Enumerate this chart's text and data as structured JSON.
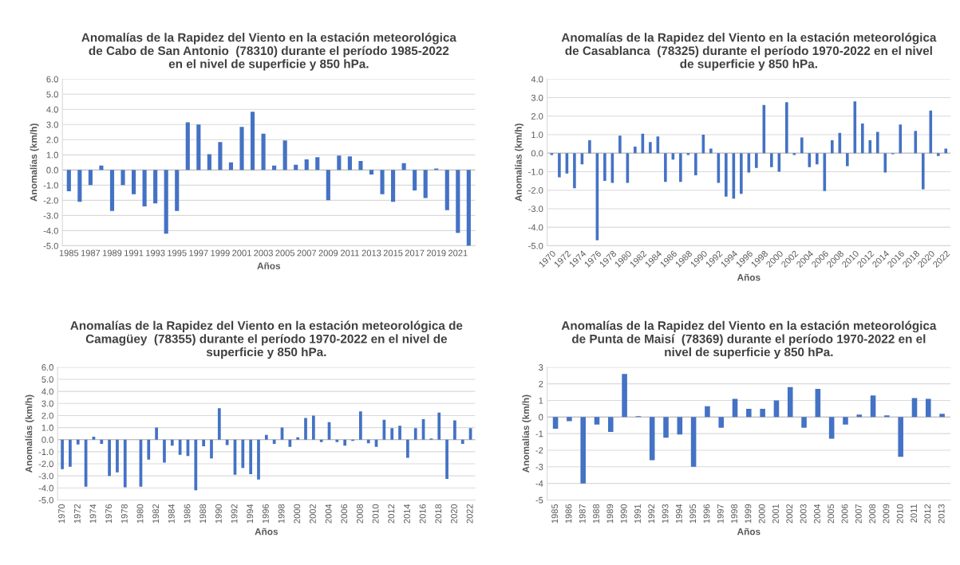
{
  "chart_data": [
    {
      "type": "bar",
      "title": "Anomalías de la Rapidez del Viento en la estación meteorológica\nde Cabo de San Antonio  (78310) durante el período 1985-2022\nen el nivel de superficie y 850 hPa.",
      "xlabel": "Años",
      "ylabel": "Anomalías (km/h)",
      "color": "#4472c4",
      "grid": "y",
      "categories": [
        "1985",
        null,
        "1987",
        null,
        "1989",
        null,
        "1991",
        null,
        "1993",
        null,
        "1995",
        null,
        "1997",
        null,
        "1999",
        null,
        "2001",
        null,
        "2003",
        null,
        "2005",
        null,
        "2007",
        null,
        "2009",
        null,
        "2011",
        null,
        "2013",
        null,
        "2015",
        null,
        "2017",
        null,
        "2019",
        null,
        "2021",
        null
      ],
      "values": [
        -1.4,
        -2.1,
        -1.0,
        0.3,
        -2.7,
        -1.0,
        -1.6,
        -2.4,
        -2.2,
        -4.2,
        -2.7,
        3.15,
        3.0,
        1.05,
        1.85,
        0.5,
        2.85,
        3.85,
        2.4,
        0.3,
        1.95,
        0.35,
        0.7,
        0.85,
        -2.0,
        0.95,
        0.9,
        0.6,
        -0.3,
        -1.6,
        -2.1,
        0.45,
        -1.35,
        -1.85,
        0.1,
        -2.65,
        -4.15,
        -5.0
      ],
      "ylim": [
        -5,
        6
      ],
      "yticks": [
        {
          "value": -5,
          "label": "-5.0"
        },
        {
          "value": -4,
          "label": "-4.0"
        },
        {
          "value": -3,
          "label": "-3.0"
        },
        {
          "value": -2,
          "label": "-2.0"
        },
        {
          "value": -1,
          "label": "-1.0"
        },
        {
          "value": 0,
          "label": "0.0"
        },
        {
          "value": 1,
          "label": "1.0"
        },
        {
          "value": 2,
          "label": "2.0"
        },
        {
          "value": 3,
          "label": "3.0"
        },
        {
          "value": 4,
          "label": "4.0"
        },
        {
          "value": 5,
          "label": "5.0"
        },
        {
          "value": 6,
          "label": "6.0"
        }
      ]
    },
    {
      "type": "bar",
      "title": "Anomalías de la Rapidez del Viento en la estación meteorológica\nde Casablanca  (78325) durante el período 1970-2022 en el nivel\nde superficie y 850 hPa.",
      "xlabel": "Años",
      "ylabel": "Anomalías (km/h)",
      "color": "#4472c4",
      "grid": "y",
      "categories": [
        "1970",
        null,
        "1972",
        null,
        "1974",
        null,
        "1976",
        null,
        "1978",
        null,
        "1980",
        null,
        "1982",
        null,
        "1984",
        null,
        "1986",
        null,
        "1988",
        null,
        "1990",
        null,
        "1992",
        null,
        "1994",
        null,
        "1996",
        null,
        "1998",
        null,
        "2000",
        null,
        "2002",
        null,
        "2004",
        null,
        "2006",
        null,
        "2008",
        null,
        "2010",
        null,
        "2012",
        null,
        "2014",
        null,
        "2016",
        null,
        "2018",
        null,
        "2020",
        null,
        "2022"
      ],
      "values": [
        -0.1,
        -1.3,
        -1.1,
        -1.9,
        -0.6,
        0.7,
        -4.7,
        -1.5,
        -1.6,
        0.95,
        -1.6,
        0.35,
        1.05,
        0.6,
        0.9,
        -1.55,
        -0.35,
        -1.55,
        -0.1,
        -1.2,
        1.0,
        0.25,
        -1.6,
        -2.35,
        -2.45,
        -2.2,
        -1.05,
        -0.8,
        2.6,
        -0.75,
        -1.0,
        2.75,
        -0.1,
        0.85,
        -0.75,
        -0.6,
        -2.05,
        0.7,
        1.1,
        -0.7,
        2.8,
        1.6,
        0.7,
        1.15,
        -1.05,
        -0.05,
        1.55,
        0.0,
        1.2,
        -1.95,
        2.3,
        -0.15,
        0.25
      ],
      "ylim": [
        -5,
        4
      ],
      "yticks": [
        {
          "value": -5,
          "label": "-5.0"
        },
        {
          "value": -4,
          "label": "-4.0"
        },
        {
          "value": -3,
          "label": "-3.0"
        },
        {
          "value": -2,
          "label": "-2.0"
        },
        {
          "value": -1,
          "label": "-1.0"
        },
        {
          "value": 0,
          "label": "0.0"
        },
        {
          "value": 1,
          "label": "1.0"
        },
        {
          "value": 2,
          "label": "2.0"
        },
        {
          "value": 3,
          "label": "3.0"
        },
        {
          "value": 4,
          "label": "4.0"
        }
      ]
    },
    {
      "type": "bar",
      "title": "Anomalías de la Rapidez del Viento en la estación meteorológica de\nCamagüey  (78355) durante el período 1970-2022 en el nivel de\nsuperficie y 850 hPa.",
      "xlabel": "Años",
      "ylabel": "Anomalías (km/h)",
      "color": "#4472c4",
      "grid": "y",
      "categories": [
        "1970",
        null,
        "1972",
        null,
        "1974",
        null,
        "1976",
        null,
        "1978",
        null,
        "1980",
        null,
        "1982",
        null,
        "1984",
        null,
        "1986",
        null,
        "1988",
        null,
        "1990",
        null,
        "1992",
        null,
        "1994",
        null,
        "1996",
        null,
        "1998",
        null,
        "2000",
        null,
        "2002",
        null,
        "2004",
        null,
        "2006",
        null,
        "2008",
        null,
        "2010",
        null,
        "2012",
        null,
        "2014",
        null,
        "2016",
        null,
        "2018",
        null,
        "2020",
        null,
        "2022"
      ],
      "values": [
        -2.45,
        -2.25,
        -0.4,
        -3.9,
        0.25,
        -0.35,
        -3.0,
        -2.7,
        -3.95,
        0.0,
        -3.9,
        -1.65,
        1.0,
        -1.9,
        -0.5,
        -1.25,
        -1.35,
        -4.2,
        -0.55,
        -1.55,
        2.6,
        -0.45,
        -2.9,
        -2.35,
        -2.85,
        -3.3,
        0.4,
        -0.35,
        1.0,
        -0.6,
        0.2,
        1.8,
        2.0,
        -0.2,
        1.45,
        -0.2,
        -0.5,
        -0.1,
        2.35,
        -0.3,
        -0.6,
        1.65,
        0.95,
        1.15,
        -1.5,
        0.95,
        1.7,
        0.1,
        2.25,
        -3.25,
        1.6,
        -0.35,
        0.95
      ],
      "ylim": [
        -5,
        6
      ],
      "yticks": [
        {
          "value": -5,
          "label": "-5.0"
        },
        {
          "value": -4,
          "label": "-4.0"
        },
        {
          "value": -3,
          "label": "-3.0"
        },
        {
          "value": -2,
          "label": "-2.0"
        },
        {
          "value": -1,
          "label": "-1.0"
        },
        {
          "value": 0,
          "label": "0.0"
        },
        {
          "value": 1,
          "label": "1.0"
        },
        {
          "value": 2,
          "label": "2.0"
        },
        {
          "value": 3,
          "label": "3.0"
        },
        {
          "value": 4,
          "label": "4.0"
        },
        {
          "value": 5,
          "label": "5.0"
        },
        {
          "value": 6,
          "label": "6.0"
        }
      ]
    },
    {
      "type": "bar",
      "title": "Anomalías de la Rapidez del Viento en la estación meteorológica\nde Punta de Maisí  (78369) durante el período 1970-2022 en el\nnivel de superficie y 850 hPa.",
      "xlabel": "Años",
      "ylabel": "Anomalías (km/h)",
      "color": "#4472c4",
      "grid": "y",
      "categories": [
        "1985",
        "1986",
        "1987",
        "1988",
        "1989",
        "1990",
        "1991",
        "1992",
        "1993",
        "1994",
        "1995",
        "1996",
        "1997",
        "1998",
        "1999",
        "2000",
        "2001",
        "2002",
        "2003",
        "2004",
        "2005",
        "2006",
        "2007",
        "2008",
        "2009",
        "2010",
        "2011",
        "2012",
        "2013"
      ],
      "values": [
        -0.7,
        -0.25,
        -4.0,
        -0.45,
        -0.9,
        2.6,
        0.05,
        -2.6,
        -1.25,
        -1.05,
        -3.0,
        0.65,
        -0.65,
        1.1,
        0.5,
        0.5,
        1.0,
        1.8,
        -0.65,
        1.7,
        -1.3,
        -0.45,
        0.15,
        1.3,
        0.1,
        -2.4,
        1.15,
        1.1,
        0.2
      ],
      "ylim": [
        -5,
        3
      ],
      "yticks": [
        -5,
        -4,
        -3,
        -2,
        -1,
        0,
        1,
        2,
        3
      ]
    }
  ]
}
